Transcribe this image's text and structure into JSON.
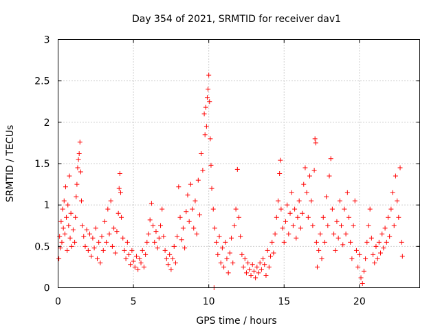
{
  "chart_data": {
    "type": "scatter",
    "title": "Day 354 of 2021, SRMTID for receiver dav1",
    "xlabel": "GPS time / hours",
    "ylabel": "SRMTID / TECUs",
    "xlim": [
      0,
      24
    ],
    "ylim": [
      0,
      3
    ],
    "xticks": [
      "0",
      "5",
      "10",
      "15",
      "20"
    ],
    "yticks": [
      "0",
      "0.5",
      "1",
      "1.5",
      "2",
      "2.5",
      "3"
    ],
    "grid": true,
    "marker": "plus",
    "color": "#ff0000",
    "series": [
      {
        "name": "SRMTID",
        "points": [
          [
            0.05,
            0.35
          ],
          [
            0.1,
            0.62
          ],
          [
            0.15,
            0.48
          ],
          [
            0.2,
            0.8
          ],
          [
            0.25,
            0.55
          ],
          [
            0.3,
            0.95
          ],
          [
            0.35,
            0.72
          ],
          [
            0.4,
            1.05
          ],
          [
            0.45,
            0.65
          ],
          [
            0.5,
            1.22
          ],
          [
            0.55,
            0.85
          ],
          [
            0.6,
            0.45
          ],
          [
            0.65,
            1.0
          ],
          [
            0.7,
            0.75
          ],
          [
            0.75,
            1.35
          ],
          [
            0.8,
            0.6
          ],
          [
            0.85,
            0.9
          ],
          [
            0.9,
            0.5
          ],
          [
            1.0,
            0.7
          ],
          [
            1.1,
            0.55
          ],
          [
            1.15,
            0.85
          ],
          [
            1.2,
            1.1
          ],
          [
            1.25,
            1.25
          ],
          [
            1.3,
            1.45
          ],
          [
            1.35,
            1.55
          ],
          [
            1.4,
            1.62
          ],
          [
            1.45,
            1.76
          ],
          [
            1.5,
            1.4
          ],
          [
            1.55,
            1.05
          ],
          [
            1.6,
            0.75
          ],
          [
            1.7,
            0.62
          ],
          [
            1.8,
            0.5
          ],
          [
            1.9,
            0.7
          ],
          [
            2.0,
            0.45
          ],
          [
            2.1,
            0.65
          ],
          [
            2.2,
            0.38
          ],
          [
            2.3,
            0.6
          ],
          [
            2.4,
            0.48
          ],
          [
            2.5,
            0.72
          ],
          [
            2.6,
            0.35
          ],
          [
            2.7,
            0.55
          ],
          [
            2.8,
            0.3
          ],
          [
            2.9,
            0.62
          ],
          [
            3.0,
            0.45
          ],
          [
            3.1,
            0.8
          ],
          [
            3.2,
            0.55
          ],
          [
            3.3,
            0.95
          ],
          [
            3.4,
            0.65
          ],
          [
            3.5,
            1.05
          ],
          [
            3.6,
            0.5
          ],
          [
            3.7,
            0.72
          ],
          [
            3.8,
            0.42
          ],
          [
            3.9,
            0.68
          ],
          [
            4.0,
            0.9
          ],
          [
            4.05,
            1.2
          ],
          [
            4.1,
            1.38
          ],
          [
            4.15,
            1.15
          ],
          [
            4.2,
            0.85
          ],
          [
            4.3,
            0.6
          ],
          [
            4.4,
            0.45
          ],
          [
            4.5,
            0.35
          ],
          [
            4.6,
            0.55
          ],
          [
            4.7,
            0.4
          ],
          [
            4.8,
            0.28
          ],
          [
            4.9,
            0.45
          ],
          [
            5.0,
            0.32
          ],
          [
            5.1,
            0.25
          ],
          [
            5.2,
            0.38
          ],
          [
            5.3,
            0.22
          ],
          [
            5.4,
            0.35
          ],
          [
            5.5,
            0.3
          ],
          [
            5.6,
            0.45
          ],
          [
            5.7,
            0.25
          ],
          [
            5.8,
            0.4
          ],
          [
            5.9,
            0.55
          ],
          [
            6.0,
            0.65
          ],
          [
            6.1,
            0.82
          ],
          [
            6.2,
            1.02
          ],
          [
            6.3,
            0.75
          ],
          [
            6.4,
            0.55
          ],
          [
            6.5,
            0.68
          ],
          [
            6.6,
            0.48
          ],
          [
            6.7,
            0.6
          ],
          [
            6.8,
            0.75
          ],
          [
            6.9,
            0.95
          ],
          [
            7.0,
            0.62
          ],
          [
            7.1,
            0.45
          ],
          [
            7.2,
            0.35
          ],
          [
            7.3,
            0.28
          ],
          [
            7.4,
            0.4
          ],
          [
            7.5,
            0.22
          ],
          [
            7.6,
            0.35
          ],
          [
            7.7,
            0.5
          ],
          [
            7.8,
            0.3
          ],
          [
            7.9,
            0.62
          ],
          [
            8.0,
            1.22
          ],
          [
            8.1,
            0.85
          ],
          [
            8.2,
            0.58
          ],
          [
            8.3,
            0.72
          ],
          [
            8.4,
            0.48
          ],
          [
            8.5,
            0.92
          ],
          [
            8.6,
            1.12
          ],
          [
            8.7,
            0.8
          ],
          [
            8.8,
            1.25
          ],
          [
            8.9,
            0.95
          ],
          [
            9.0,
            0.72
          ],
          [
            9.1,
            1.05
          ],
          [
            9.2,
            0.65
          ],
          [
            9.3,
            1.3
          ],
          [
            9.4,
            0.88
          ],
          [
            9.5,
            1.62
          ],
          [
            9.6,
            1.42
          ],
          [
            9.7,
            2.1
          ],
          [
            9.75,
            1.85
          ],
          [
            9.8,
            2.18
          ],
          [
            9.85,
            1.95
          ],
          [
            9.9,
            2.3
          ],
          [
            9.95,
            2.4
          ],
          [
            10.0,
            2.57
          ],
          [
            10.05,
            2.25
          ],
          [
            10.1,
            1.8
          ],
          [
            10.15,
            1.48
          ],
          [
            10.2,
            1.2
          ],
          [
            10.3,
            0.95
          ],
          [
            10.35,
            0.0
          ],
          [
            10.4,
            0.72
          ],
          [
            10.5,
            0.55
          ],
          [
            10.6,
            0.4
          ],
          [
            10.7,
            0.62
          ],
          [
            10.8,
            0.3
          ],
          [
            10.9,
            0.48
          ],
          [
            11.0,
            0.25
          ],
          [
            11.1,
            0.55
          ],
          [
            11.2,
            0.35
          ],
          [
            11.3,
            0.18
          ],
          [
            11.4,
            0.42
          ],
          [
            11.5,
            0.6
          ],
          [
            11.6,
            0.3
          ],
          [
            11.7,
            0.75
          ],
          [
            11.8,
            0.95
          ],
          [
            11.9,
            1.43
          ],
          [
            12.0,
            0.85
          ],
          [
            12.1,
            0.62
          ],
          [
            12.2,
            0.4
          ],
          [
            12.3,
            0.25
          ],
          [
            12.4,
            0.35
          ],
          [
            12.5,
            0.18
          ],
          [
            12.6,
            0.3
          ],
          [
            12.7,
            0.22
          ],
          [
            12.8,
            0.15
          ],
          [
            12.9,
            0.28
          ],
          [
            13.0,
            0.2
          ],
          [
            13.1,
            0.12
          ],
          [
            13.2,
            0.25
          ],
          [
            13.3,
            0.18
          ],
          [
            13.4,
            0.3
          ],
          [
            13.5,
            0.22
          ],
          [
            13.6,
            0.35
          ],
          [
            13.7,
            0.28
          ],
          [
            13.8,
            0.15
          ],
          [
            13.9,
            0.45
          ],
          [
            14.0,
            0.25
          ],
          [
            14.1,
            0.38
          ],
          [
            14.2,
            0.55
          ],
          [
            14.3,
            0.42
          ],
          [
            14.4,
            0.65
          ],
          [
            14.5,
            0.85
          ],
          [
            14.6,
            1.05
          ],
          [
            14.7,
            1.38
          ],
          [
            14.75,
            1.54
          ],
          [
            14.8,
            0.95
          ],
          [
            14.9,
            0.72
          ],
          [
            15.0,
            0.55
          ],
          [
            15.1,
            0.8
          ],
          [
            15.2,
            1.0
          ],
          [
            15.3,
            0.65
          ],
          [
            15.4,
            0.9
          ],
          [
            15.5,
            1.15
          ],
          [
            15.6,
            0.75
          ],
          [
            15.7,
            0.95
          ],
          [
            15.8,
            0.6
          ],
          [
            15.9,
            0.85
          ],
          [
            16.0,
            1.05
          ],
          [
            16.1,
            0.72
          ],
          [
            16.2,
            0.9
          ],
          [
            16.3,
            1.25
          ],
          [
            16.4,
            1.45
          ],
          [
            16.5,
            1.15
          ],
          [
            16.6,
            0.85
          ],
          [
            16.7,
            1.35
          ],
          [
            16.8,
            1.05
          ],
          [
            16.9,
            0.75
          ],
          [
            17.0,
            1.42
          ],
          [
            17.05,
            1.8
          ],
          [
            17.1,
            1.75
          ],
          [
            17.15,
            0.55
          ],
          [
            17.2,
            0.25
          ],
          [
            17.3,
            0.45
          ],
          [
            17.4,
            0.65
          ],
          [
            17.5,
            0.35
          ],
          [
            17.6,
            0.85
          ],
          [
            17.7,
            0.55
          ],
          [
            17.8,
            1.1
          ],
          [
            17.9,
            0.75
          ],
          [
            18.0,
            1.35
          ],
          [
            18.1,
            1.56
          ],
          [
            18.2,
            0.95
          ],
          [
            18.3,
            0.65
          ],
          [
            18.4,
            0.45
          ],
          [
            18.5,
            0.8
          ],
          [
            18.6,
            0.6
          ],
          [
            18.7,
            1.05
          ],
          [
            18.8,
            0.75
          ],
          [
            18.9,
            0.52
          ],
          [
            19.0,
            0.95
          ],
          [
            19.1,
            0.65
          ],
          [
            19.2,
            1.15
          ],
          [
            19.3,
            0.85
          ],
          [
            19.4,
            0.55
          ],
          [
            19.5,
            0.35
          ],
          [
            19.6,
            0.75
          ],
          [
            19.7,
            1.05
          ],
          [
            19.8,
            0.45
          ],
          [
            19.9,
            0.25
          ],
          [
            20.0,
            0.4
          ],
          [
            20.1,
            0.12
          ],
          [
            20.2,
            0.05
          ],
          [
            20.3,
            0.2
          ],
          [
            20.4,
            0.35
          ],
          [
            20.5,
            0.55
          ],
          [
            20.6,
            0.75
          ],
          [
            20.7,
            0.95
          ],
          [
            20.8,
            0.6
          ],
          [
            20.9,
            0.4
          ],
          [
            21.0,
            0.3
          ],
          [
            21.1,
            0.5
          ],
          [
            21.2,
            0.35
          ],
          [
            21.3,
            0.55
          ],
          [
            21.4,
            0.42
          ],
          [
            21.5,
            0.65
          ],
          [
            21.6,
            0.48
          ],
          [
            21.7,
            0.72
          ],
          [
            21.8,
            0.55
          ],
          [
            21.9,
            0.85
          ],
          [
            22.0,
            0.62
          ],
          [
            22.1,
            0.95
          ],
          [
            22.2,
            1.15
          ],
          [
            22.3,
            0.75
          ],
          [
            22.4,
            1.35
          ],
          [
            22.5,
            1.05
          ],
          [
            22.6,
            0.85
          ],
          [
            22.7,
            1.45
          ],
          [
            22.8,
            0.55
          ],
          [
            22.85,
            0.38
          ]
        ]
      }
    ]
  }
}
